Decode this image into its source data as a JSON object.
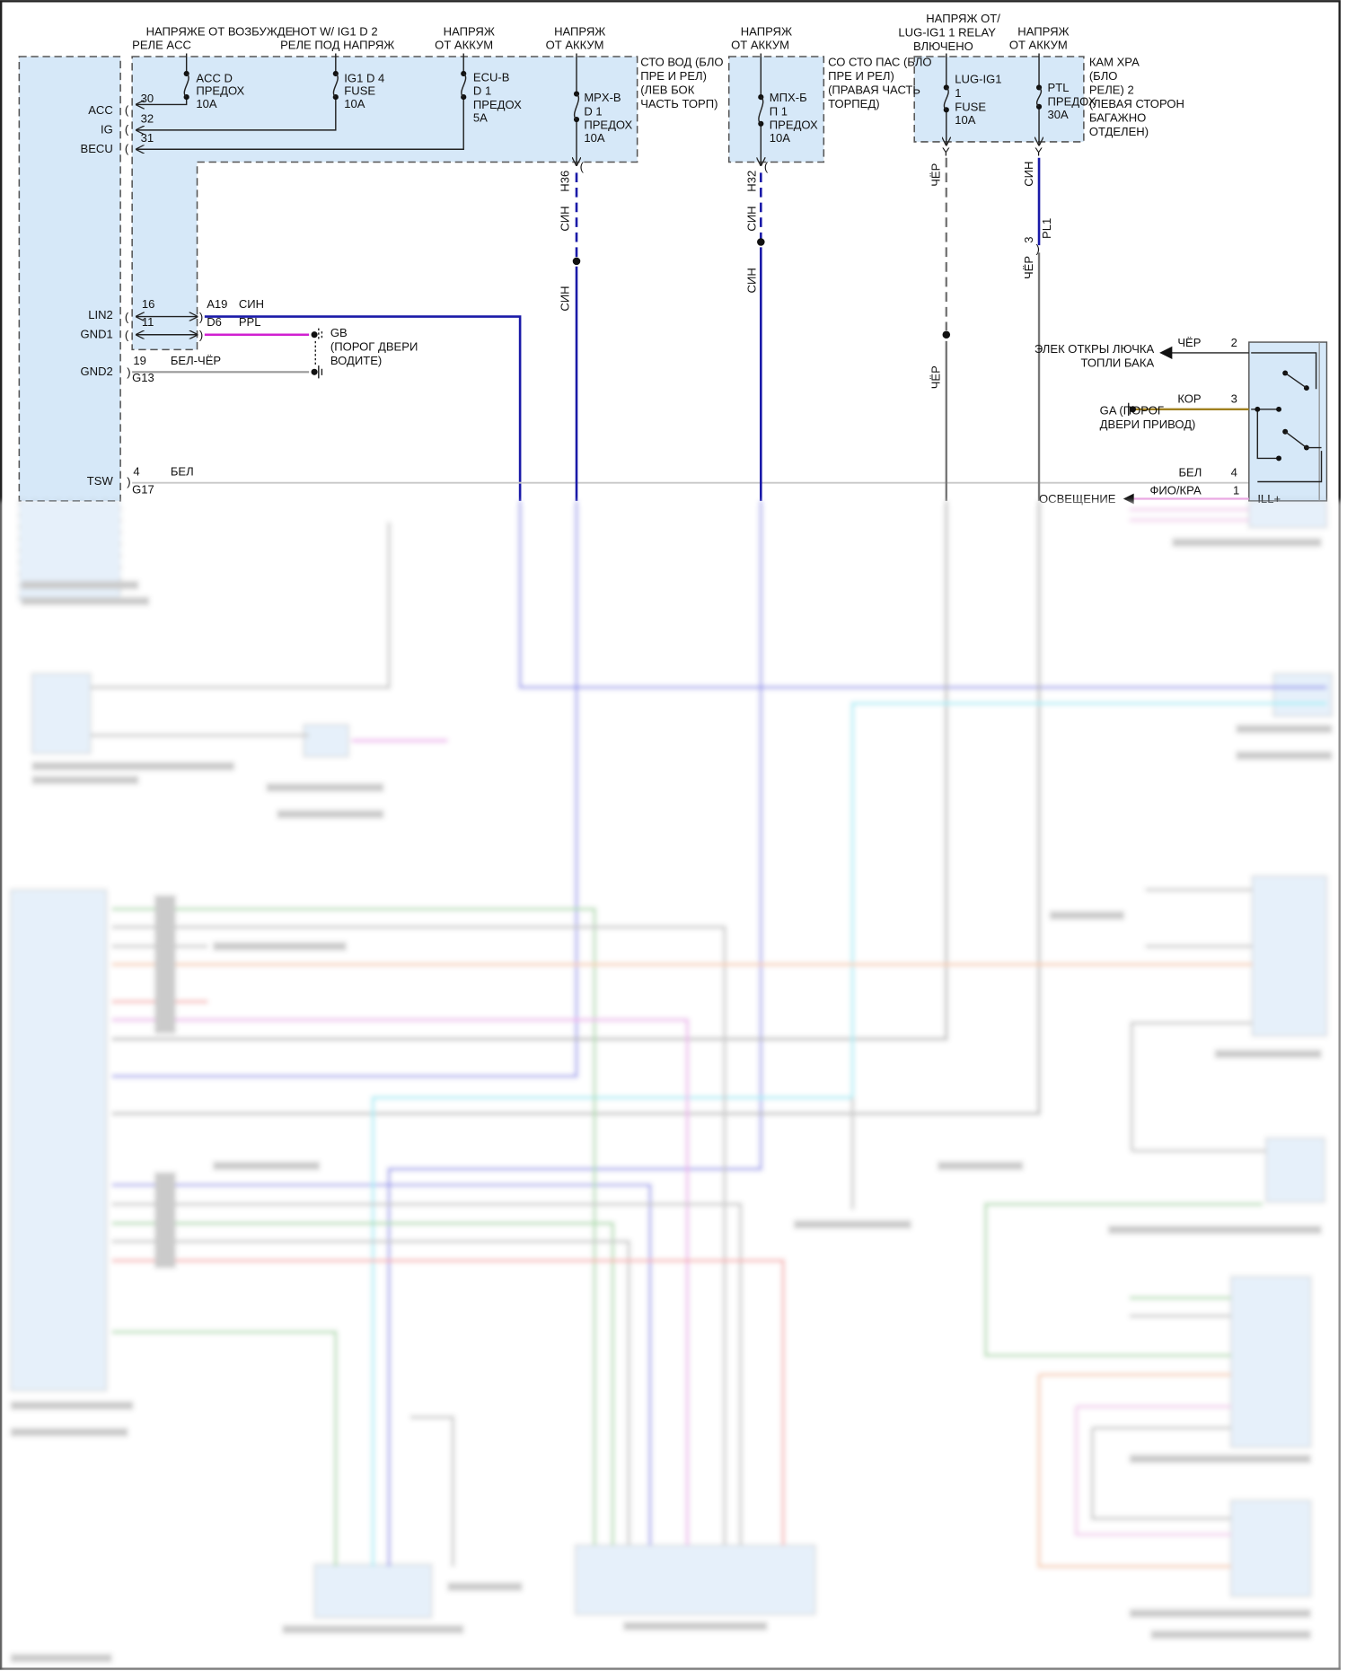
{
  "headers": [
    [
      "НАПРЯЖЕ ОТ ВОЗБУЖДЕ",
      "РЕЛЕ ACC"
    ],
    [
      "HOT W/ IG1 D 2",
      "РЕЛЕ ПОД НАПРЯЖ"
    ],
    [
      "НАПРЯЖ",
      "ОТ АККУМ"
    ],
    [
      "НАПРЯЖ",
      "ОТ АККУМ"
    ],
    [
      "НАПРЯЖ",
      "ОТ АККУМ"
    ],
    [
      "НАПРЯЖ ОТ/",
      "LUG-IG1 1 RELAY",
      "ВЛЮЧЕНО"
    ],
    [
      "НАПРЯЖ",
      "ОТ АККУМ"
    ]
  ],
  "fuses": [
    [
      "ACC D",
      "ПРЕДОХ",
      "10A"
    ],
    [
      "IG1 D 4",
      "FUSE",
      "10A"
    ],
    [
      "ECU-B",
      "D 1",
      "ПРЕДОХ",
      "5A"
    ],
    [
      "MPX-B",
      "D 1",
      "ПРЕДОХ",
      "10A"
    ],
    [
      "МПХ-Б",
      "П 1",
      "ПРЕДОХ",
      "10A"
    ],
    [
      "LUG-IG1",
      "1",
      "FUSE",
      "10A"
    ],
    [
      "PTL",
      "ПРЕДОХ",
      "30A"
    ]
  ],
  "blocks": {
    "driver_jb": [
      "СТО ВОД (БЛО",
      "ПРЕ И РЕЛ)",
      "(ЛЕВ БОК",
      "ЧАСТЬ ТОРП)"
    ],
    "passenger_jb": [
      "СО СТО ПАС (БЛО",
      "ПРЕ И РЕЛ)",
      "(ПРАВАЯ ЧАСТЬ",
      "ТОРПЕД)"
    ],
    "luggage_relay": [
      "КАМ ХРА",
      "(БЛО",
      "РЕЛЕ) 2",
      "(ЛЕВАЯ СТОРОН",
      "БАГАЖНО",
      "ОТДЕЛЕН)"
    ]
  },
  "ecu_pins": {
    "acc": {
      "name": "ACC",
      "num": "30"
    },
    "ig": {
      "name": "IG",
      "num": "32"
    },
    "becu": {
      "name": "BECU",
      "num": "31"
    },
    "lin2": {
      "name": "LIN2",
      "num": "16",
      "conn": "A19",
      "color": "СИН"
    },
    "gnd1": {
      "name": "GND1",
      "num": "11",
      "conn": "D6",
      "color": "PPL"
    },
    "gnd2": {
      "name": "GND2",
      "num": "19",
      "conn": "G13",
      "color": "БЕЛ-ЧЁР"
    },
    "tsw": {
      "name": "TSW",
      "num": "4",
      "conn": "G17",
      "color": "БЕЛ"
    }
  },
  "grounds": {
    "gb": [
      "GB",
      "(ПОРОГ ДВЕРИ",
      "ВОДИТЕ)"
    ],
    "ga": [
      "GA (ПОРОГ",
      "ДВЕРИ ПРИВОД)"
    ]
  },
  "vertical_wires": {
    "h36": {
      "conn": "H36",
      "color_upper": "СИН",
      "color_lower": "СИН"
    },
    "h32": {
      "conn": "H32",
      "color_upper": "СИН",
      "color_lower": "СИН"
    },
    "lug": {
      "color_upper": "ЧЁР",
      "color_lower": "ЧЁР"
    },
    "ptl": {
      "color_upper": "СИН",
      "pin": "3",
      "conn": "PL1",
      "color_lower": "ЧЁР"
    }
  },
  "switch": {
    "pin2": {
      "num": "2",
      "color": "ЧЁР",
      "dest": [
        "ЭЛЕК ОТКРЫ ЛЮЧКА",
        "ТОПЛИ БАКА"
      ]
    },
    "pin3": {
      "num": "3",
      "color": "КОР"
    },
    "pin4": {
      "num": "4",
      "color": "БЕЛ"
    },
    "pin1": {
      "num": "1",
      "color": "ФИО/КРА",
      "name": "ILL+",
      "dest": "ОСВЕЩЕНИЕ"
    }
  },
  "colors": {
    "box_fill": "#d6e8f8",
    "blue_wire": "#1a1aa8",
    "purple_wire": "#d020d0",
    "gray_wire": "#777777",
    "brown_wire": "#a08020"
  }
}
